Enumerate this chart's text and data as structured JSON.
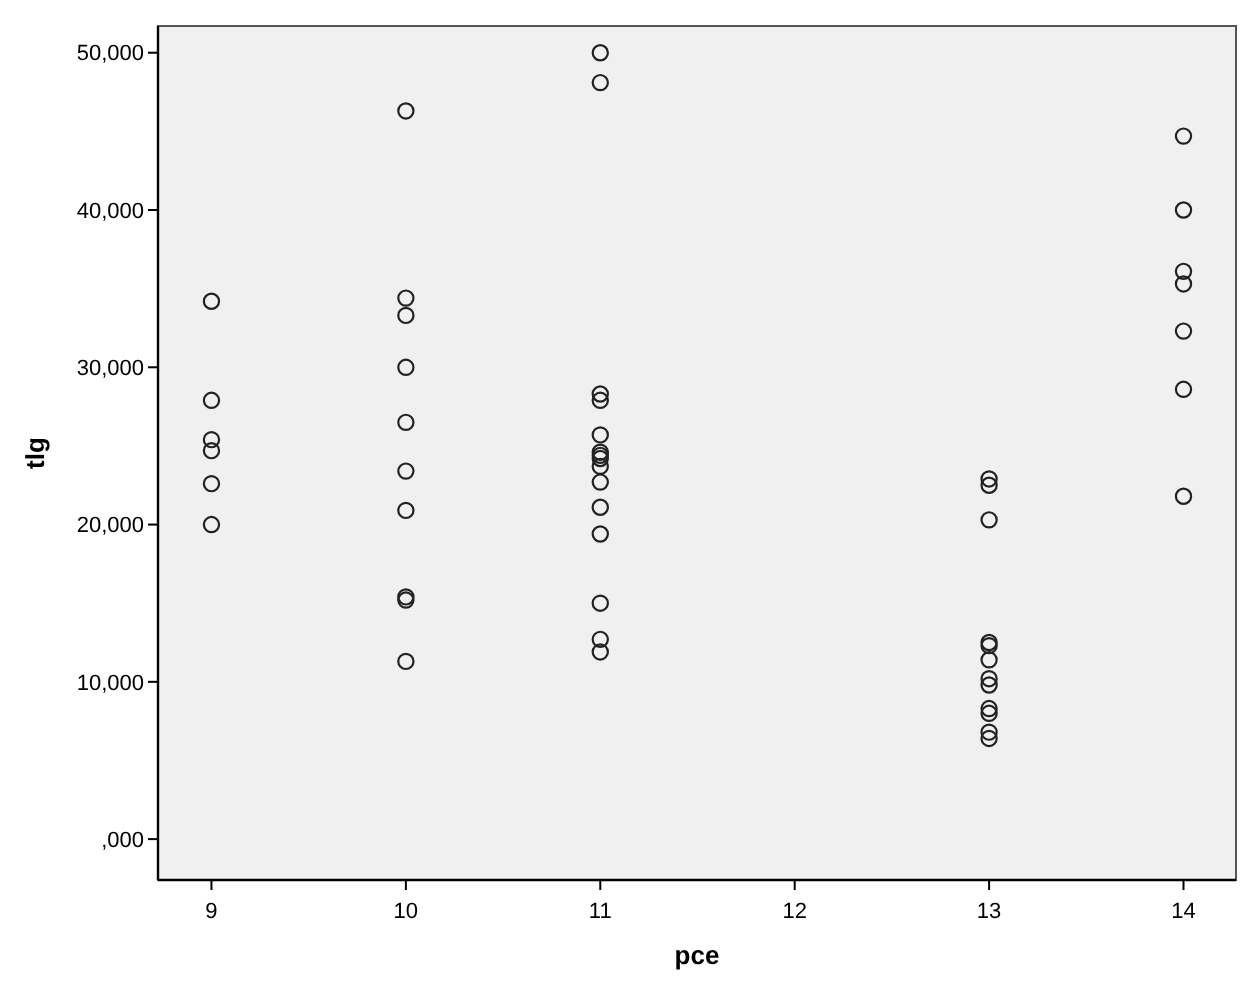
{
  "chart_data": {
    "type": "scatter",
    "xlabel": "pce",
    "ylabel": "tlg",
    "series": [
      {
        "color": "#222222",
        "x": [
          9,
          9,
          9,
          9,
          9,
          9,
          10,
          10,
          10,
          10,
          10,
          10,
          10,
          10,
          10,
          10,
          11,
          11,
          11,
          11,
          11,
          11,
          11,
          11,
          11,
          11,
          11,
          11,
          11,
          11,
          11,
          13,
          13,
          13,
          13,
          13,
          13,
          13,
          13,
          13,
          13,
          13,
          13,
          14,
          14,
          14,
          14,
          14,
          14,
          14
        ],
        "values": [
          34200,
          27900,
          25400,
          24700,
          22600,
          20000,
          46300,
          34400,
          33300,
          30000,
          26500,
          23400,
          20900,
          15400,
          15200,
          11300,
          50000,
          48100,
          28300,
          27900,
          25700,
          24600,
          24400,
          24200,
          23700,
          22700,
          21100,
          19400,
          15000,
          12700,
          11900,
          22900,
          22500,
          20300,
          12500,
          12300,
          11400,
          10200,
          9800,
          8300,
          8000,
          6800,
          6400,
          44700,
          40000,
          36100,
          35300,
          32300,
          28600,
          21800
        ]
      }
    ],
    "xlim": [
      8.725,
      14.27
    ],
    "xticks": [
      9,
      10,
      11,
      12,
      13,
      14
    ],
    "ylim": [
      -2600,
      51700
    ],
    "yticks": [
      {
        "value": 0,
        "label": ",000"
      },
      {
        "value": 10000,
        "label": "10,000"
      },
      {
        "value": 20000,
        "label": "20,000"
      },
      {
        "value": 30000,
        "label": "30,000"
      },
      {
        "value": 40000,
        "label": "40,000"
      },
      {
        "value": 50000,
        "label": "50,000"
      }
    ],
    "marker": "circle"
  }
}
